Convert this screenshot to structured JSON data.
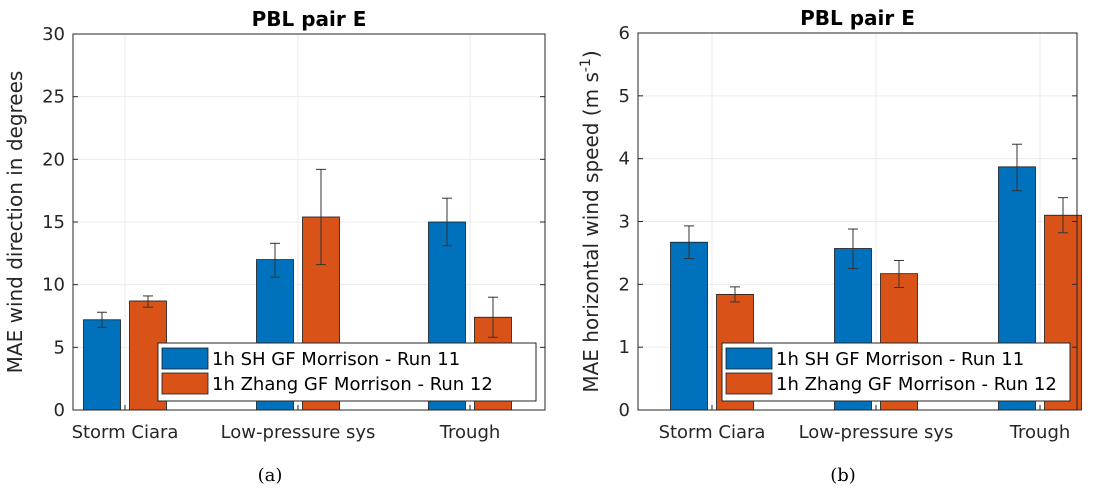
{
  "chart_data": [
    {
      "type": "bar",
      "title": "PBL pair E",
      "xlabel": "",
      "ylabel": "MAE wind direction in degrees",
      "ylim": [
        0,
        30
      ],
      "yticks": [
        0,
        5,
        10,
        15,
        20,
        25,
        30
      ],
      "grid": true,
      "legend_position": "lower-right",
      "categories": [
        "Storm Ciara",
        "Low-pressure sys",
        "Trough"
      ],
      "series": [
        {
          "name": "1h SH GF Morrison - Run 11",
          "color": "#0072BD",
          "values": [
            7.2,
            12.0,
            15.0
          ],
          "err_low": [
            6.6,
            10.6,
            13.1
          ],
          "err_high": [
            7.8,
            13.3,
            16.9
          ]
        },
        {
          "name": "1h Zhang GF Morrison - Run 12",
          "color": "#D95319",
          "values": [
            8.7,
            15.4,
            7.4
          ],
          "err_low": [
            8.2,
            11.6,
            5.8
          ],
          "err_high": [
            9.1,
            19.2,
            9.0
          ]
        }
      ],
      "caption": "(a)"
    },
    {
      "type": "bar",
      "title": "PBL pair E",
      "xlabel": "",
      "ylabel": "MAE horizontal wind speed (m s",
      "ylabel_sup": "-1",
      "ylabel_end": ")",
      "ylim": [
        0,
        6
      ],
      "yticks": [
        0,
        1,
        2,
        3,
        4,
        5,
        6
      ],
      "grid": true,
      "legend_position": "lower-right",
      "categories": [
        "Storm Ciara",
        "Low-pressure sys",
        "Trough"
      ],
      "series": [
        {
          "name": "1h SH GF Morrison - Run 11",
          "color": "#0072BD",
          "values": [
            2.67,
            2.57,
            3.87
          ],
          "err_low": [
            2.41,
            2.25,
            3.49
          ],
          "err_high": [
            2.93,
            2.88,
            4.23
          ]
        },
        {
          "name": "1h Zhang GF Morrison - Run 12",
          "color": "#D95319",
          "values": [
            1.84,
            2.17,
            3.1
          ],
          "err_low": [
            1.72,
            1.95,
            2.82
          ],
          "err_high": [
            1.96,
            2.38,
            3.38
          ]
        }
      ],
      "caption": "(b)"
    }
  ]
}
